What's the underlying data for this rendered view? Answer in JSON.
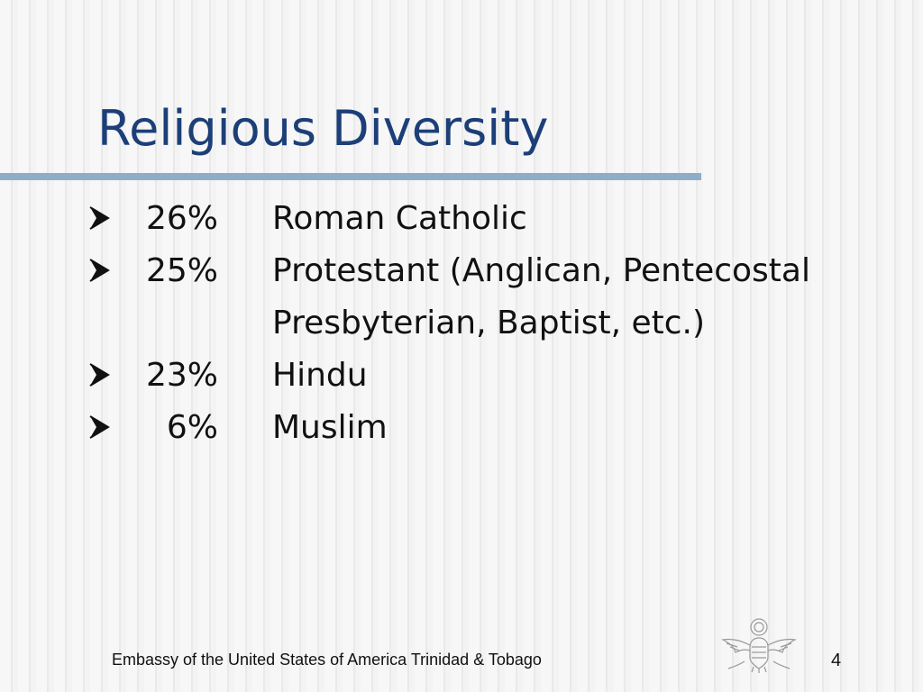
{
  "slide": {
    "title": "Religious Diversity",
    "bullets": [
      {
        "percent": "26%",
        "label": "Roman Catholic"
      },
      {
        "percent": "25%",
        "label": "Protestant (Anglican, Pentecostal",
        "continuation": "Presbyterian, Baptist, etc.)"
      },
      {
        "percent": "23%",
        "label": "Hindu"
      },
      {
        "percent": "6%",
        "label": "Muslim"
      }
    ],
    "footer": "Embassy of the United States of America Trinidad & Tobago",
    "page_number": "4"
  },
  "icons": {
    "bullet": "arrow-bullet-icon",
    "seal": "great-seal-eagle-icon"
  },
  "colors": {
    "title": "#1c3f78",
    "rule": "#8facc9",
    "text": "#111111"
  }
}
